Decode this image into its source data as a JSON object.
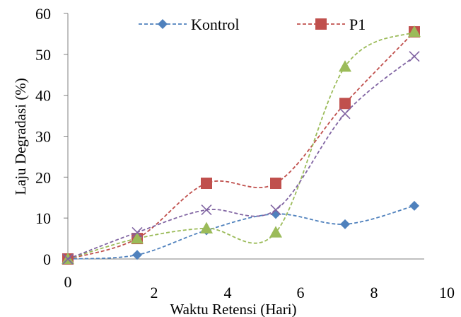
{
  "chart_data": {
    "type": "line",
    "title": "",
    "xlabel": "Waktu Retensi (Hari)",
    "ylabel": "Laju Degradasi (%)",
    "ylim": [
      0,
      60
    ],
    "y_ticks": [
      "0",
      "10",
      "20",
      "30",
      "40",
      "50",
      "60"
    ],
    "x_ticks": [
      "0",
      "2",
      "4",
      "6",
      "8",
      "10"
    ],
    "x": [
      0,
      2,
      4,
      6,
      8,
      10
    ],
    "grid": false,
    "legend_position": "top",
    "series": [
      {
        "name": "Kontrol",
        "color": "#4f81bd",
        "marker": "diamond",
        "values": [
          0,
          1,
          7,
          11,
          8.5,
          13
        ]
      },
      {
        "name": "P1",
        "color": "#c0504d",
        "marker": "square",
        "values": [
          0,
          5,
          18.5,
          18.5,
          38,
          55.5
        ]
      },
      {
        "name": "",
        "color": "#9bbb59",
        "marker": "triangle",
        "values": [
          0,
          5,
          7.5,
          6.5,
          47,
          55.5
        ]
      },
      {
        "name": "",
        "color": "#8064a2",
        "marker": "x",
        "values": [
          0,
          6.5,
          12,
          12,
          35.5,
          49.5
        ]
      }
    ]
  }
}
